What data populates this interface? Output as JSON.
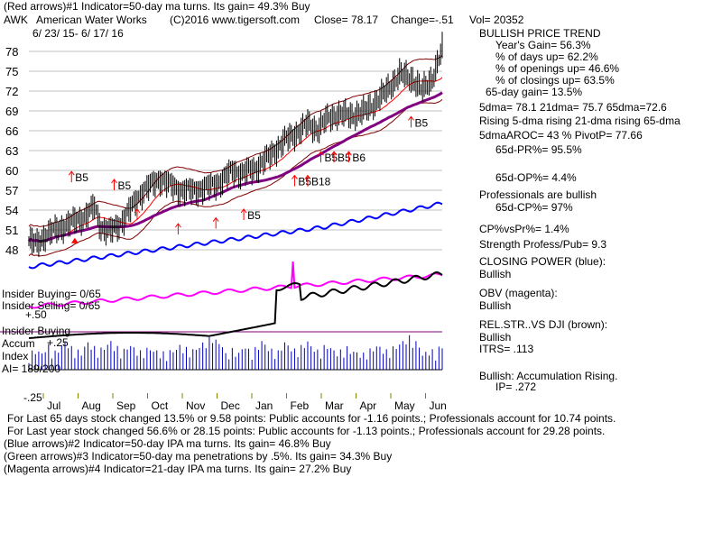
{
  "header": {
    "line1": "(Red arrows)#1 Indicator=50-day ma turns. Its gain= 49.3% Buy",
    "ticker": "AWK",
    "company": "American Water Works",
    "copyright": "(C)2016 www.tigersoft.com",
    "close": "Close= 78.17",
    "change": "Change=-.51",
    "vol": "Vol= 20352",
    "daterange": "6/ 23/ 15- 6/ 17/ 16"
  },
  "panel": {
    "title": "BULLISH PRICE TREND",
    "years_gain": "Year's Gain= 56.3%",
    "days_up": "% of days up= 62.2%",
    "openings_up": "% of openings up= 46.6%",
    "closings_up": "% of closings up= 63.5%",
    "gain65": "65-day gain= 13.5%",
    "dma": "5dma= 78.1 21dma= 75.7 65dma=72.6",
    "rising": "Rising 5-dma rising 21-dma rising 65-dma",
    "aroc": "5dmaAROC= 43 % PivotP= 77.66",
    "pr65": "65d-PR%= 95.5%",
    "op65": "65d-OP%= 4.4%",
    "pros": "Professionals are bullish",
    "cp65": "65d-CP%= 97%",
    "cpvspr": "CP%vsPr%= 1.4%",
    "strength": "Strength Profess/Pub= 9.3",
    "closing_power": "CLOSING POWER (blue):",
    "cp_state": "Bullish",
    "obv": "OBV (magenta):",
    "obv_state": "Bullish",
    "relstr": "REL.STR..VS DJI (brown):",
    "relstr_state": "Bullish",
    "itrs": "ITRS= .113",
    "accum": "Bullish: Accumulation Rising.",
    "ip": "IP= .272"
  },
  "lower": {
    "insider_buying": "Insider Buying= 0/65",
    "insider_selling": "Insider Selling= 0/65",
    "plus50": "+.50",
    "insider_buying2": "Insider Buying",
    "accum": "Accum",
    "plus25": "+.25",
    "index": "Index",
    "ai": "AI= 189/200",
    "minus25": "-.25"
  },
  "footer": {
    "l1": "For Last 65 days stock changed 13.5% or 9.58 points: Public accounts for -1.16 points.; Professionals account for 10.74 points.",
    "l2": "For Last year stock changed 56.6% or 28.15 points: Public accounts for -1.13 points.; Professionals account for 29.28 points.",
    "l3": "(Blue arrows)#2 Indicator=50-day IPA ma turns. Its gain= 46.8% Buy",
    "l4": "(Green arrows)#3 Indicator=50-day ma penetrations by .5%. Its gain= 34.3% Buy",
    "l5": "(Magenta arrows)#4 Indicator=21-day IPA ma turns. Its gain= 27.2% Buy"
  },
  "colors": {
    "price": "#000000",
    "band": "#800000",
    "ma65": "#800080",
    "cp": "#0000ff",
    "obv": "#ff00ff",
    "redarrow": "#ff0000",
    "volume": "#0000c0"
  },
  "chart_data": {
    "type": "line",
    "y_ticks": [
      "78",
      "75",
      "72",
      "69",
      "66",
      "63",
      "60",
      "57",
      "54",
      "51",
      "48"
    ],
    "ylim": [
      47,
      80
    ],
    "months": [
      "Jul",
      "Aug",
      "Sep",
      "Oct",
      "Nov",
      "Dec",
      "Jan",
      "Feb",
      "Mar",
      "Apr",
      "May",
      "Jun"
    ],
    "price_keys": [
      [
        0,
        49.3
      ],
      [
        5,
        48.9
      ],
      [
        10,
        50.2
      ],
      [
        18,
        51.2
      ],
      [
        26,
        52.1
      ],
      [
        34,
        53.0
      ],
      [
        40,
        54.5
      ],
      [
        44,
        51.4
      ],
      [
        50,
        50.8
      ],
      [
        56,
        52.0
      ],
      [
        62,
        54.2
      ],
      [
        70,
        57.0
      ],
      [
        80,
        58.7
      ],
      [
        86,
        57.8
      ],
      [
        92,
        57.0
      ],
      [
        100,
        56.9
      ],
      [
        110,
        57.5
      ],
      [
        118,
        58.5
      ],
      [
        124,
        60.0
      ],
      [
        130,
        59.5
      ],
      [
        138,
        60.3
      ],
      [
        146,
        62.0
      ],
      [
        156,
        64.5
      ],
      [
        164,
        65.8
      ],
      [
        170,
        67.0
      ],
      [
        176,
        66.2
      ],
      [
        182,
        67.8
      ],
      [
        188,
        68.5
      ],
      [
        196,
        68.3
      ],
      [
        204,
        68.8
      ],
      [
        210,
        70.0
      ],
      [
        218,
        72.0
      ],
      [
        226,
        74.5
      ],
      [
        234,
        73.8
      ],
      [
        240,
        72.0
      ],
      [
        246,
        74.0
      ],
      [
        252,
        78.2
      ]
    ],
    "arrows_b5_labels": [
      "B5",
      "B5",
      "B5",
      "B5",
      "B5",
      "B6",
      "B5",
      "B18",
      "B5"
    ],
    "volume_samples": [
      6,
      8,
      10,
      9,
      7,
      12,
      14,
      10,
      8,
      11,
      15,
      18,
      16,
      12,
      10,
      9,
      8,
      14,
      17,
      15,
      12,
      10,
      11,
      13,
      16,
      18,
      14,
      12,
      9,
      10,
      13,
      15,
      12,
      10,
      8,
      9,
      11,
      12,
      10,
      9,
      8,
      7,
      6,
      9,
      10,
      12,
      14,
      13,
      11,
      9,
      10,
      12,
      14,
      16,
      18,
      20,
      22,
      19,
      17,
      15
    ]
  }
}
